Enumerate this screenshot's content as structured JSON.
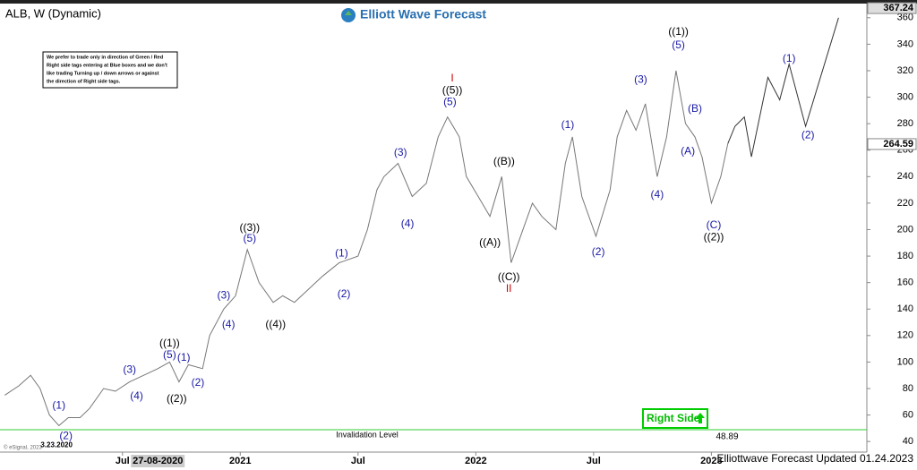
{
  "chart_data": {
    "type": "line",
    "title": "ALB, W (Dynamic)",
    "brand": "Elliott Wave Forecast",
    "note": [
      "We prefer to trade only in direction of Green / Red",
      "Right side tags entering at Blue boxes and we don't",
      "like trading Turning up / down arrows or against",
      "the direction of Right side tags."
    ],
    "footer": "Elliottwave Forecast Updated 01.24.2023",
    "copyright": "© eSignal, 2023",
    "right_side_tag": "Right Side",
    "crosshair_label": {
      "x": 2020.65,
      "label": "27-08-2020"
    },
    "series": [
      {
        "color": "#777777",
        "x": [
          2020.0,
          2020.06,
          2020.11,
          2020.15,
          2020.19,
          2020.23,
          2020.27,
          2020.32,
          2020.36,
          2020.42,
          2020.47,
          2020.53,
          2020.59,
          2020.65,
          2020.7,
          2020.74,
          2020.78,
          2020.84,
          2020.87,
          2020.93,
          2020.98,
          2021.03,
          2021.08,
          2021.14,
          2021.18,
          2021.23,
          2021.29,
          2021.35,
          2021.42,
          2021.5,
          2021.54,
          2021.58,
          2021.61,
          2021.67,
          2021.73,
          2021.79,
          2021.84,
          2021.88,
          2021.93,
          2021.96,
          2022.01,
          2022.06,
          2022.11,
          2022.15,
          2022.19,
          2022.24,
          2022.28,
          2022.34,
          2022.38,
          2022.41,
          2022.45,
          2022.51,
          2022.57,
          2022.6,
          2022.64,
          2022.68,
          2022.72,
          2022.77,
          2022.81,
          2022.85,
          2022.89,
          2022.93,
          2022.96,
          2023.0,
          2023.04,
          2023.07
        ],
        "values": [
          75,
          82,
          90,
          80,
          60,
          52,
          58,
          58,
          65,
          80,
          78,
          85,
          90,
          95,
          100,
          85,
          98,
          95,
          120,
          140,
          150,
          185,
          160,
          145,
          150,
          145,
          155,
          165,
          175,
          180,
          200,
          230,
          240,
          250,
          225,
          235,
          270,
          285,
          270,
          240,
          225,
          210,
          240,
          175,
          195,
          220,
          210,
          200,
          250,
          270,
          225,
          195,
          230,
          270,
          290,
          275,
          295,
          240,
          270,
          320,
          280,
          270,
          255,
          220,
          240,
          265
        ]
      },
      {
        "color": "#333333",
        "x": [
          2023.07,
          2023.1,
          2023.14,
          2023.17,
          2023.24,
          2023.29,
          2023.33,
          2023.4,
          2023.54
        ],
        "values": [
          265,
          278,
          285,
          255,
          315,
          298,
          325,
          278,
          360
        ]
      }
    ],
    "invalidation": {
      "label": "Invalidation Level",
      "value": 48.89,
      "value_label": "48.89",
      "color": "#33cc33"
    },
    "price_labels": [
      367.24,
      264.59
    ],
    "annotations": [
      {
        "text": "(1)",
        "x": 2020.23,
        "y": 67,
        "color": "#1a1aa6"
      },
      {
        "text": "(2)",
        "x": 2020.26,
        "y": 44,
        "color": "#1a1aa6"
      },
      {
        "text": "3.23.2020",
        "x": 2020.22,
        "y": 37,
        "color": "#000000"
      },
      {
        "text": "(3)",
        "x": 2020.53,
        "y": 94,
        "color": "#1a1aa6"
      },
      {
        "text": "(4)",
        "x": 2020.56,
        "y": 74,
        "color": "#1a1aa6"
      },
      {
        "text": "((1))",
        "x": 2020.7,
        "y": 114,
        "color": "#000000"
      },
      {
        "text": "(5)",
        "x": 2020.7,
        "y": 105,
        "color": "#1a1aa6"
      },
      {
        "text": "(1)",
        "x": 2020.76,
        "y": 103,
        "color": "#1a1aa6"
      },
      {
        "text": "((2))",
        "x": 2020.73,
        "y": 72,
        "color": "#000000"
      },
      {
        "text": "(2)",
        "x": 2020.82,
        "y": 84,
        "color": "#1a1aa6"
      },
      {
        "text": "(3)",
        "x": 2020.93,
        "y": 150,
        "color": "#1a1aa6"
      },
      {
        "text": "(4)",
        "x": 2020.95,
        "y": 128,
        "color": "#1a1aa6"
      },
      {
        "text": "((3))",
        "x": 2021.04,
        "y": 201,
        "color": "#000000"
      },
      {
        "text": "(5)",
        "x": 2021.04,
        "y": 193,
        "color": "#1a1aa6"
      },
      {
        "text": "((4))",
        "x": 2021.15,
        "y": 128,
        "color": "#000000"
      },
      {
        "text": "(1)",
        "x": 2021.43,
        "y": 182,
        "color": "#1a1aa6"
      },
      {
        "text": "(2)",
        "x": 2021.44,
        "y": 151,
        "color": "#1a1aa6"
      },
      {
        "text": "(3)",
        "x": 2021.68,
        "y": 258,
        "color": "#1a1aa6"
      },
      {
        "text": "(4)",
        "x": 2021.71,
        "y": 204,
        "color": "#1a1aa6"
      },
      {
        "text": "I",
        "x": 2021.9,
        "y": 314,
        "color": "#cc0000"
      },
      {
        "text": "((5))",
        "x": 2021.9,
        "y": 305,
        "color": "#000000"
      },
      {
        "text": "(5)",
        "x": 2021.89,
        "y": 296,
        "color": "#1a1aa6"
      },
      {
        "text": "((B))",
        "x": 2022.12,
        "y": 251,
        "color": "#000000"
      },
      {
        "text": "((A))",
        "x": 2022.06,
        "y": 190,
        "color": "#000000"
      },
      {
        "text": "((C))",
        "x": 2022.14,
        "y": 164,
        "color": "#000000"
      },
      {
        "text": "II",
        "x": 2022.14,
        "y": 155,
        "color": "#cc0000"
      },
      {
        "text": "(1)",
        "x": 2022.39,
        "y": 279,
        "color": "#1a1aa6"
      },
      {
        "text": "(2)",
        "x": 2022.52,
        "y": 183,
        "color": "#1a1aa6"
      },
      {
        "text": "(3)",
        "x": 2022.7,
        "y": 313,
        "color": "#1a1aa6"
      },
      {
        "text": "(4)",
        "x": 2022.77,
        "y": 226,
        "color": "#1a1aa6"
      },
      {
        "text": "((1))",
        "x": 2022.86,
        "y": 349,
        "color": "#000000"
      },
      {
        "text": "(5)",
        "x": 2022.86,
        "y": 339,
        "color": "#1a1aa6"
      },
      {
        "text": "(B)",
        "x": 2022.93,
        "y": 291,
        "color": "#1a1aa6"
      },
      {
        "text": "(A)",
        "x": 2022.9,
        "y": 259,
        "color": "#1a1aa6"
      },
      {
        "text": "(C)",
        "x": 2023.01,
        "y": 203,
        "color": "#1a1aa6"
      },
      {
        "text": "((2))",
        "x": 2023.01,
        "y": 194,
        "color": "#000000"
      },
      {
        "text": "(1)",
        "x": 2023.33,
        "y": 329,
        "color": "#1a1aa6"
      },
      {
        "text": "(2)",
        "x": 2023.41,
        "y": 271,
        "color": "#1a1aa6"
      }
    ],
    "xlim": [
      2019.98,
      2023.66
    ],
    "xticks": [
      {
        "value": 2020.5,
        "label": "Jul"
      },
      2021,
      {
        "value": 2021.5,
        "label": "Jul"
      },
      2022,
      {
        "value": 2022.5,
        "label": "Jul"
      },
      2023
    ],
    "ylim": [
      32,
      370
    ],
    "yticks": [
      40,
      60,
      80,
      100,
      120,
      140,
      160,
      180,
      200,
      220,
      240,
      260,
      280,
      300,
      320,
      340,
      360
    ]
  }
}
